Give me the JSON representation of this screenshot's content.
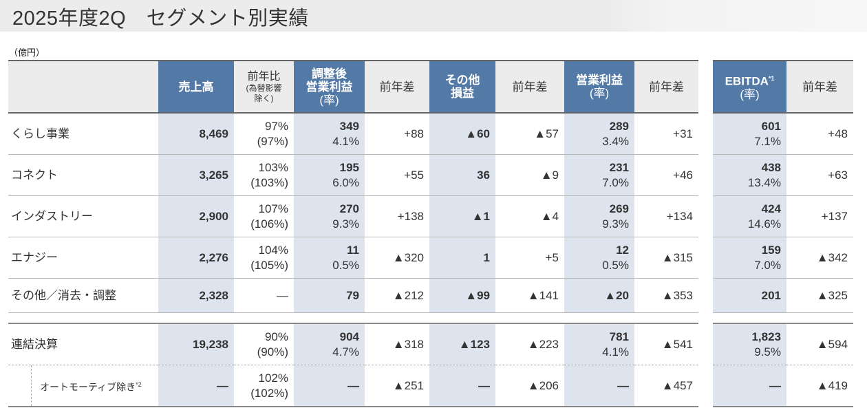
{
  "title": "2025年度2Q　セグメント別実績",
  "unit": "（億円）",
  "headers": [
    "売上高",
    "前年比",
    "(為替影響",
    "除く)",
    "調整後",
    "営業利益",
    "(率)",
    "前年差",
    "その他",
    "損益",
    "前年差",
    "営業利益",
    "(率)",
    "前年差",
    "EBITDA",
    "*1",
    "(率)",
    "前年差"
  ],
  "rows": [
    {
      "label": "くらし事業",
      "c": [
        [
          "8,469",
          ""
        ],
        [
          "97%",
          "(97%)"
        ],
        [
          "349",
          "4.1%"
        ],
        [
          "+88",
          ""
        ],
        [
          "▲60",
          ""
        ],
        [
          "▲57",
          ""
        ],
        [
          "289",
          "3.4%"
        ],
        [
          "+31",
          ""
        ],
        [
          "601",
          "7.1%"
        ],
        [
          "+48",
          ""
        ]
      ]
    },
    {
      "label": "コネクト",
      "c": [
        [
          "3,265",
          ""
        ],
        [
          "103%",
          "(103%)"
        ],
        [
          "195",
          "6.0%"
        ],
        [
          "+55",
          ""
        ],
        [
          "36",
          ""
        ],
        [
          "▲9",
          ""
        ],
        [
          "231",
          "7.0%"
        ],
        [
          "+46",
          ""
        ],
        [
          "438",
          "13.4%"
        ],
        [
          "+63",
          ""
        ]
      ]
    },
    {
      "label": "インダストリー",
      "c": [
        [
          "2,900",
          ""
        ],
        [
          "107%",
          "(106%)"
        ],
        [
          "270",
          "9.3%"
        ],
        [
          "+138",
          ""
        ],
        [
          "▲1",
          ""
        ],
        [
          "▲4",
          ""
        ],
        [
          "269",
          "9.3%"
        ],
        [
          "+134",
          ""
        ],
        [
          "424",
          "14.6%"
        ],
        [
          "+137",
          ""
        ]
      ]
    },
    {
      "label": "エナジー",
      "c": [
        [
          "2,276",
          ""
        ],
        [
          "104%",
          "(105%)"
        ],
        [
          "11",
          "0.5%"
        ],
        [
          "▲320",
          ""
        ],
        [
          "1",
          ""
        ],
        [
          "+5",
          ""
        ],
        [
          "12",
          "0.5%"
        ],
        [
          "▲315",
          ""
        ],
        [
          "159",
          "7.0%"
        ],
        [
          "▲342",
          ""
        ]
      ]
    },
    {
      "label": "その他／消去・調整",
      "c": [
        [
          "2,328",
          ""
        ],
        [
          "—",
          ""
        ],
        [
          "79",
          ""
        ],
        [
          "▲212",
          ""
        ],
        [
          "▲99",
          ""
        ],
        [
          "▲141",
          ""
        ],
        [
          "▲20",
          ""
        ],
        [
          "▲353",
          ""
        ],
        [
          "201",
          ""
        ],
        [
          "▲325",
          ""
        ]
      ]
    },
    {
      "label": "連結決算",
      "c": [
        [
          "19,238",
          ""
        ],
        [
          "90%",
          "(90%)"
        ],
        [
          "904",
          "4.7%"
        ],
        [
          "▲318",
          ""
        ],
        [
          "▲123",
          ""
        ],
        [
          "▲223",
          ""
        ],
        [
          "781",
          "4.1%"
        ],
        [
          "▲541",
          ""
        ],
        [
          "1,823",
          "9.5%"
        ],
        [
          "▲594",
          ""
        ]
      ]
    },
    {
      "label": "オートモーティブ除き",
      "note": "*2",
      "c": [
        [
          "—",
          ""
        ],
        [
          "102%",
          "(102%)"
        ],
        [
          "—",
          ""
        ],
        [
          "▲251",
          ""
        ],
        [
          "—",
          ""
        ],
        [
          "▲206",
          ""
        ],
        [
          "—",
          ""
        ],
        [
          "▲457",
          ""
        ],
        [
          "—",
          ""
        ],
        [
          "▲419",
          ""
        ]
      ]
    }
  ]
}
